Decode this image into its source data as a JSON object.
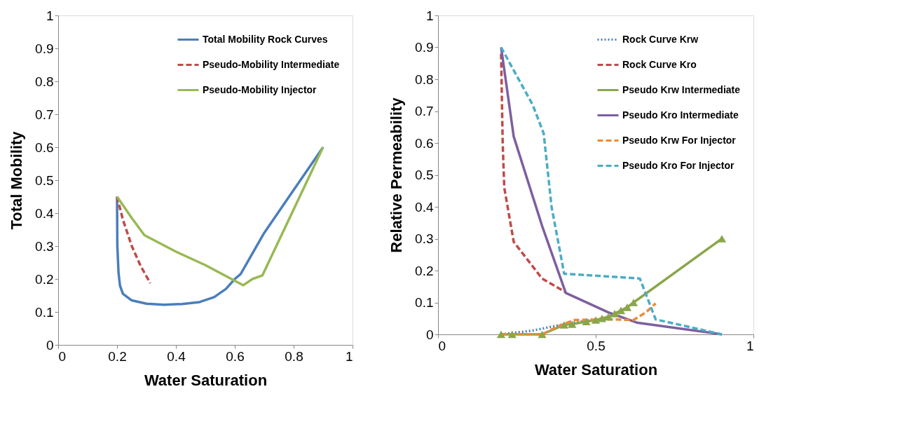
{
  "chart_data": [
    {
      "type": "line",
      "xlabel": "Water Saturation",
      "ylabel": "Total Mobility",
      "xlim": [
        0,
        1
      ],
      "ylim": [
        0,
        1
      ],
      "xticks": [
        0,
        0.2,
        0.4,
        0.6,
        0.8,
        1
      ],
      "yticks": [
        0,
        0.1,
        0.2,
        0.3,
        0.4,
        0.5,
        0.6,
        0.7,
        0.8,
        0.9,
        1
      ],
      "grid": false,
      "legend": "top right",
      "series": [
        {
          "name": "Total Mobility Rock Curves",
          "color": "#4a7ebb",
          "line_style": "solid",
          "x": [
            0.2,
            0.201,
            0.205,
            0.21,
            0.22,
            0.25,
            0.3,
            0.36,
            0.42,
            0.48,
            0.53,
            0.57,
            0.6,
            0.62,
            0.7,
            0.8,
            0.9
          ],
          "values": [
            0.45,
            0.3,
            0.22,
            0.18,
            0.155,
            0.135,
            0.125,
            0.122,
            0.124,
            0.13,
            0.145,
            0.17,
            0.2,
            0.215,
            0.34,
            0.47,
            0.6
          ]
        },
        {
          "name": "Pseudo-Mobility Intermediate",
          "color": "#be4b48",
          "line_style": "dashed",
          "x": [
            0.2,
            0.22,
            0.25,
            0.28,
            0.313
          ],
          "values": [
            0.45,
            0.38,
            0.3,
            0.24,
            0.187
          ]
        },
        {
          "name": "Pseudo-Mobility Injector",
          "color": "#98b954",
          "line_style": "solid",
          "x": [
            0.2,
            0.25,
            0.293,
            0.4,
            0.5,
            0.629,
            0.66,
            0.694,
            0.9
          ],
          "values": [
            0.45,
            0.385,
            0.333,
            0.283,
            0.242,
            0.181,
            0.2,
            0.211,
            0.6
          ]
        }
      ]
    },
    {
      "type": "line",
      "xlabel": "Water Saturation",
      "ylabel": "Relative Permeability",
      "xlim": [
        0,
        1
      ],
      "ylim": [
        0,
        1
      ],
      "xticks": [
        0,
        0.5,
        1
      ],
      "yticks": [
        0,
        0.1,
        0.2,
        0.3,
        0.4,
        0.5,
        0.6,
        0.7,
        0.8,
        0.9,
        1
      ],
      "grid": false,
      "legend": "top right",
      "series": [
        {
          "name": "Rock Curve Krw",
          "color": "#4a7ebb",
          "line_style": "dotted",
          "x": [
            0.2,
            0.3,
            0.39,
            0.45,
            0.5
          ],
          "values": [
            0,
            0.012,
            0.03,
            0.04,
            0.047
          ]
        },
        {
          "name": "Rock Curve Kro",
          "color": "#be4b48",
          "line_style": "dashed",
          "x": [
            0.2,
            0.205,
            0.21,
            0.24,
            0.33,
            0.405
          ],
          "values": [
            0.88,
            0.6,
            0.46,
            0.29,
            0.175,
            0.132
          ]
        },
        {
          "name": "Pseudo Krw Intermediate",
          "color": "#8aa64b",
          "line_style": "solid",
          "marker": "triangle",
          "x": [
            0.2,
            0.235,
            0.33,
            0.4,
            0.425,
            0.47,
            0.5,
            0.52,
            0.54,
            0.56,
            0.58,
            0.6,
            0.62,
            0.9
          ],
          "values": [
            0,
            0,
            0,
            0.03,
            0.032,
            0.04,
            0.045,
            0.05,
            0.055,
            0.065,
            0.075,
            0.085,
            0.1,
            0.3
          ]
        },
        {
          "name": "Pseudo Kro Intermediate",
          "color": "#7d5fa0",
          "line_style": "solid",
          "x": [
            0.2,
            0.24,
            0.33,
            0.405,
            0.54,
            0.63,
            0.9
          ],
          "values": [
            0.9,
            0.62,
            0.34,
            0.13,
            0.069,
            0.037,
            0
          ]
        },
        {
          "name": "Pseudo Krw For Injector",
          "color": "#e98b3a",
          "line_style": "dashed",
          "x": [
            0.2,
            0.33,
            0.38,
            0.43,
            0.55,
            0.62,
            0.66,
            0.69
          ],
          "values": [
            0,
            0,
            0.025,
            0.045,
            0.047,
            0.045,
            0.07,
            0.097
          ]
        },
        {
          "name": "Pseudo Kro For Injector",
          "color": "#4bacc6",
          "line_style": "dashed",
          "x": [
            0.2,
            0.3,
            0.335,
            0.36,
            0.4,
            0.64,
            0.69,
            0.9
          ],
          "values": [
            0.9,
            0.72,
            0.63,
            0.4,
            0.19,
            0.175,
            0.047,
            0
          ]
        }
      ]
    }
  ]
}
